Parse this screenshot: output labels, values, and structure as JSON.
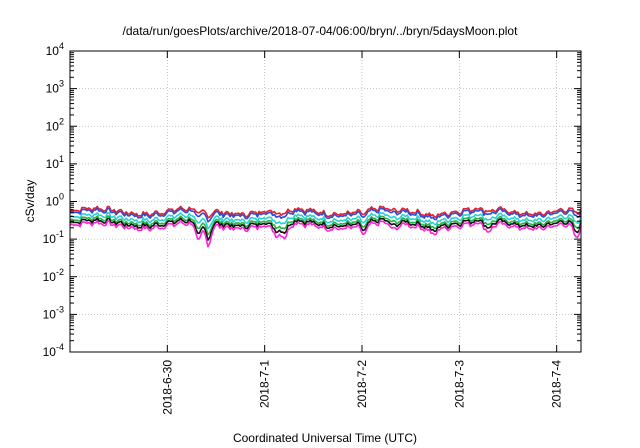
{
  "chart_data": {
    "type": "line",
    "title": "/data/run/goesPlots/archive/2018-07-04/06:00/bryn/../bryn/5daysMoon.plot",
    "xlabel": "Coordinated Universal Time (UTC)",
    "ylabel": "cSv/day",
    "yscale": "log",
    "ylim": [
      0.0001,
      10000
    ],
    "xlim": [
      "2018-06-29T00:00",
      "2018-07-04T06:00"
    ],
    "y_ticks": [
      {
        "base": "10",
        "exp": "-4"
      },
      {
        "base": "10",
        "exp": "-3"
      },
      {
        "base": "10",
        "exp": "-2"
      },
      {
        "base": "10",
        "exp": "-1"
      },
      {
        "base": "10",
        "exp": "0"
      },
      {
        "base": "10",
        "exp": "1"
      },
      {
        "base": "10",
        "exp": "2"
      },
      {
        "base": "10",
        "exp": "3"
      },
      {
        "base": "10",
        "exp": "4"
      }
    ],
    "x_ticks": [
      "2018-6-30",
      "2018-7-1",
      "2018-7-2",
      "2018-7-3",
      "2018-7-4"
    ],
    "grid": true,
    "legend": "none",
    "series": [
      {
        "color": "#e8202a",
        "level": 0.56
      },
      {
        "color": "#2b4fd9",
        "level": 0.5
      },
      {
        "color": "#27d3cf",
        "level": 0.38
      },
      {
        "color": "#28b34a",
        "level": 0.31
      },
      {
        "color": "#111111",
        "level": 0.27
      },
      {
        "color": "#ff22d6",
        "level": 0.23
      }
    ],
    "dips": [
      {
        "day": 1.32,
        "factor": 0.35
      },
      {
        "day": 1.42,
        "factor": 0.3
      },
      {
        "day": 2.12,
        "factor": 0.45
      },
      {
        "day": 2.21,
        "factor": 0.4
      },
      {
        "day": 3.02,
        "factor": 0.6
      },
      {
        "day": 3.33,
        "factor": 0.65
      },
      {
        "day": 3.73,
        "factor": 0.7
      },
      {
        "day": 4.3,
        "factor": 0.55
      },
      {
        "day": 5.2,
        "factor": 0.4
      }
    ]
  }
}
